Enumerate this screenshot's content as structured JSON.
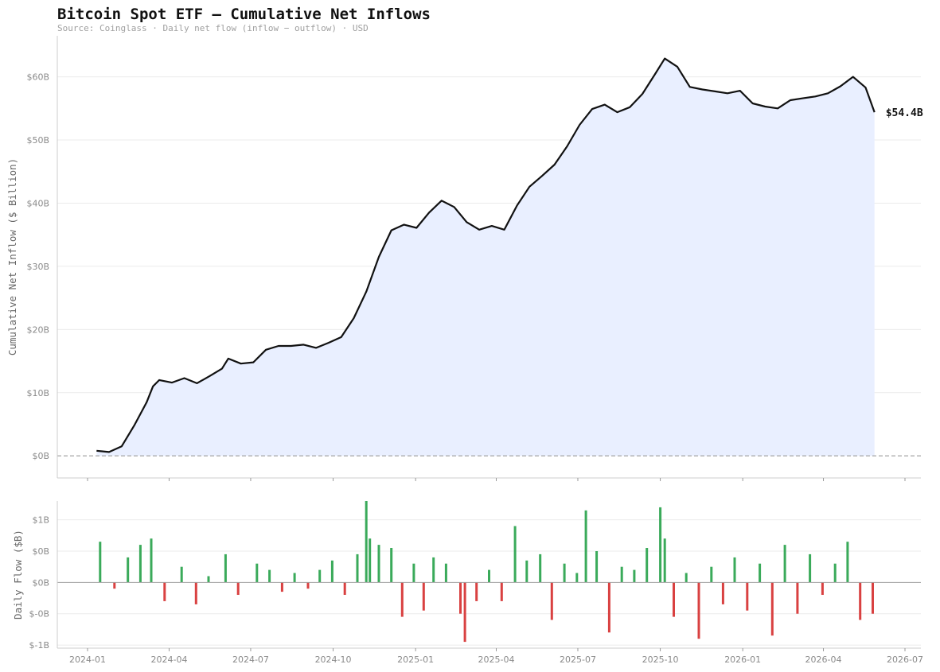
{
  "chart_data": [
    {
      "type": "area",
      "title": "Bitcoin Spot ETF — Cumulative Net Inflows",
      "subtitle": "Source: Coinglass  ·  Daily net flow (inflow − outflow)  ·  USD",
      "ylabel": "Cumulative Net Inflow ($ Billion)",
      "ylim": [
        -3.5,
        66.5
      ],
      "ytick_values": [
        0,
        10,
        20,
        30,
        40,
        50,
        60
      ],
      "ytick_labels": [
        "$0B",
        "$10B",
        "$20B",
        "$30B",
        "$40B",
        "$50B",
        "$60B"
      ],
      "grid": true,
      "zero_line": "dashed",
      "line_color": "#111111",
      "fill_color": "#e9efff",
      "end_label": "$54.4B",
      "series": [
        {
          "x": [
            "2024-01-11",
            "2024-01-25",
            "2024-02-08",
            "2024-02-22",
            "2024-03-07",
            "2024-03-14",
            "2024-03-21",
            "2024-04-04",
            "2024-04-18",
            "2024-05-02",
            "2024-05-16",
            "2024-05-30",
            "2024-06-06",
            "2024-06-20",
            "2024-07-04",
            "2024-07-18",
            "2024-08-01",
            "2024-08-15",
            "2024-08-29",
            "2024-09-12",
            "2024-09-26",
            "2024-10-10",
            "2024-10-24",
            "2024-11-07",
            "2024-11-21",
            "2024-12-05",
            "2024-12-19",
            "2025-01-02",
            "2025-01-16",
            "2025-01-30",
            "2025-02-13",
            "2025-02-27",
            "2025-03-13",
            "2025-03-27",
            "2025-04-10",
            "2025-04-24",
            "2025-05-08",
            "2025-05-22",
            "2025-06-05",
            "2025-06-19",
            "2025-07-03",
            "2025-07-17",
            "2025-07-31",
            "2025-08-14",
            "2025-08-28",
            "2025-09-11",
            "2025-09-25",
            "2025-10-06",
            "2025-10-20",
            "2025-11-03",
            "2025-11-17",
            "2025-12-01",
            "2025-12-15",
            "2025-12-29",
            "2026-01-12",
            "2026-01-26",
            "2026-02-09",
            "2026-02-23",
            "2026-03-09",
            "2026-03-23",
            "2026-04-06",
            "2026-04-20",
            "2026-05-04",
            "2026-05-18",
            "2026-05-28"
          ],
          "values": [
            0.8,
            0.6,
            1.5,
            4.8,
            8.5,
            11.0,
            12.0,
            11.6,
            12.3,
            11.5,
            12.6,
            13.8,
            15.4,
            14.6,
            14.8,
            16.8,
            17.4,
            17.4,
            17.6,
            17.1,
            17.9,
            18.8,
            21.8,
            26.0,
            31.5,
            35.7,
            36.6,
            36.1,
            38.5,
            40.4,
            39.4,
            37.0,
            35.8,
            36.4,
            35.8,
            39.6,
            42.6,
            44.3,
            46.1,
            49.0,
            52.4,
            54.9,
            55.6,
            54.4,
            55.2,
            57.3,
            60.4,
            62.9,
            61.6,
            58.4,
            58.0,
            57.7,
            57.4,
            57.8,
            55.8,
            55.3,
            55.0,
            56.3,
            56.6,
            56.9,
            57.4,
            58.5,
            60.0,
            58.3,
            54.4
          ]
        }
      ]
    },
    {
      "type": "bar",
      "ylabel": "Daily Flow ($B)",
      "ylim": [
        -1.05,
        1.3
      ],
      "ytick_values": [
        1.0,
        0.5,
        0.0,
        -0.5,
        -1.0
      ],
      "ytick_labels": [
        "$1B",
        "$0B",
        "$0B",
        "$-0B",
        "$-1B"
      ],
      "xtick_labels": [
        "2024-01",
        "2024-04",
        "2024-07",
        "2024-10",
        "2025-01",
        "2025-04",
        "2025-07",
        "2025-10",
        "2026-01",
        "2026-04",
        "2026-07"
      ],
      "positive_color": "#3aaa5a",
      "negative_color": "#d94141",
      "series": [
        {
          "name": "Daily net flow",
          "x": [
            "2024-01-15",
            "2024-01-31",
            "2024-02-15",
            "2024-02-29",
            "2024-03-12",
            "2024-03-27",
            "2024-04-15",
            "2024-05-01",
            "2024-05-15",
            "2024-06-03",
            "2024-06-17",
            "2024-07-08",
            "2024-07-22",
            "2024-08-05",
            "2024-08-19",
            "2024-09-03",
            "2024-09-16",
            "2024-09-30",
            "2024-10-14",
            "2024-10-28",
            "2024-11-07",
            "2024-11-11",
            "2024-11-21",
            "2024-12-05",
            "2024-12-17",
            "2024-12-30",
            "2025-01-10",
            "2025-01-21",
            "2025-02-04",
            "2025-02-20",
            "2025-02-25",
            "2025-03-10",
            "2025-03-24",
            "2025-04-07",
            "2025-04-22",
            "2025-05-05",
            "2025-05-20",
            "2025-06-02",
            "2025-06-16",
            "2025-06-30",
            "2025-07-10",
            "2025-07-22",
            "2025-08-05",
            "2025-08-19",
            "2025-09-02",
            "2025-09-16",
            "2025-10-01",
            "2025-10-06",
            "2025-10-16",
            "2025-10-30",
            "2025-11-13",
            "2025-11-27",
            "2025-12-10",
            "2025-12-23",
            "2026-01-06",
            "2026-01-20",
            "2026-02-03",
            "2026-02-17",
            "2026-03-03",
            "2026-03-17",
            "2026-03-31",
            "2026-04-14",
            "2026-04-28",
            "2026-05-12",
            "2026-05-26"
          ],
          "values": [
            0.65,
            -0.1,
            0.4,
            0.6,
            0.7,
            -0.3,
            0.25,
            -0.35,
            0.1,
            0.45,
            -0.2,
            0.3,
            0.2,
            -0.15,
            0.15,
            -0.1,
            0.2,
            0.35,
            -0.2,
            0.45,
            1.3,
            0.7,
            0.6,
            0.55,
            -0.55,
            0.3,
            -0.45,
            0.4,
            0.3,
            -0.5,
            -0.95,
            -0.3,
            0.2,
            -0.3,
            0.9,
            0.35,
            0.45,
            -0.6,
            0.3,
            0.15,
            1.15,
            0.5,
            -0.8,
            0.25,
            0.2,
            0.55,
            1.2,
            0.7,
            -0.55,
            0.15,
            -0.9,
            0.25,
            -0.35,
            0.4,
            -0.45,
            0.3,
            -0.85,
            0.6,
            -0.5,
            0.45,
            -0.2,
            0.3,
            0.65,
            -0.6,
            -0.5
          ]
        }
      ]
    }
  ]
}
